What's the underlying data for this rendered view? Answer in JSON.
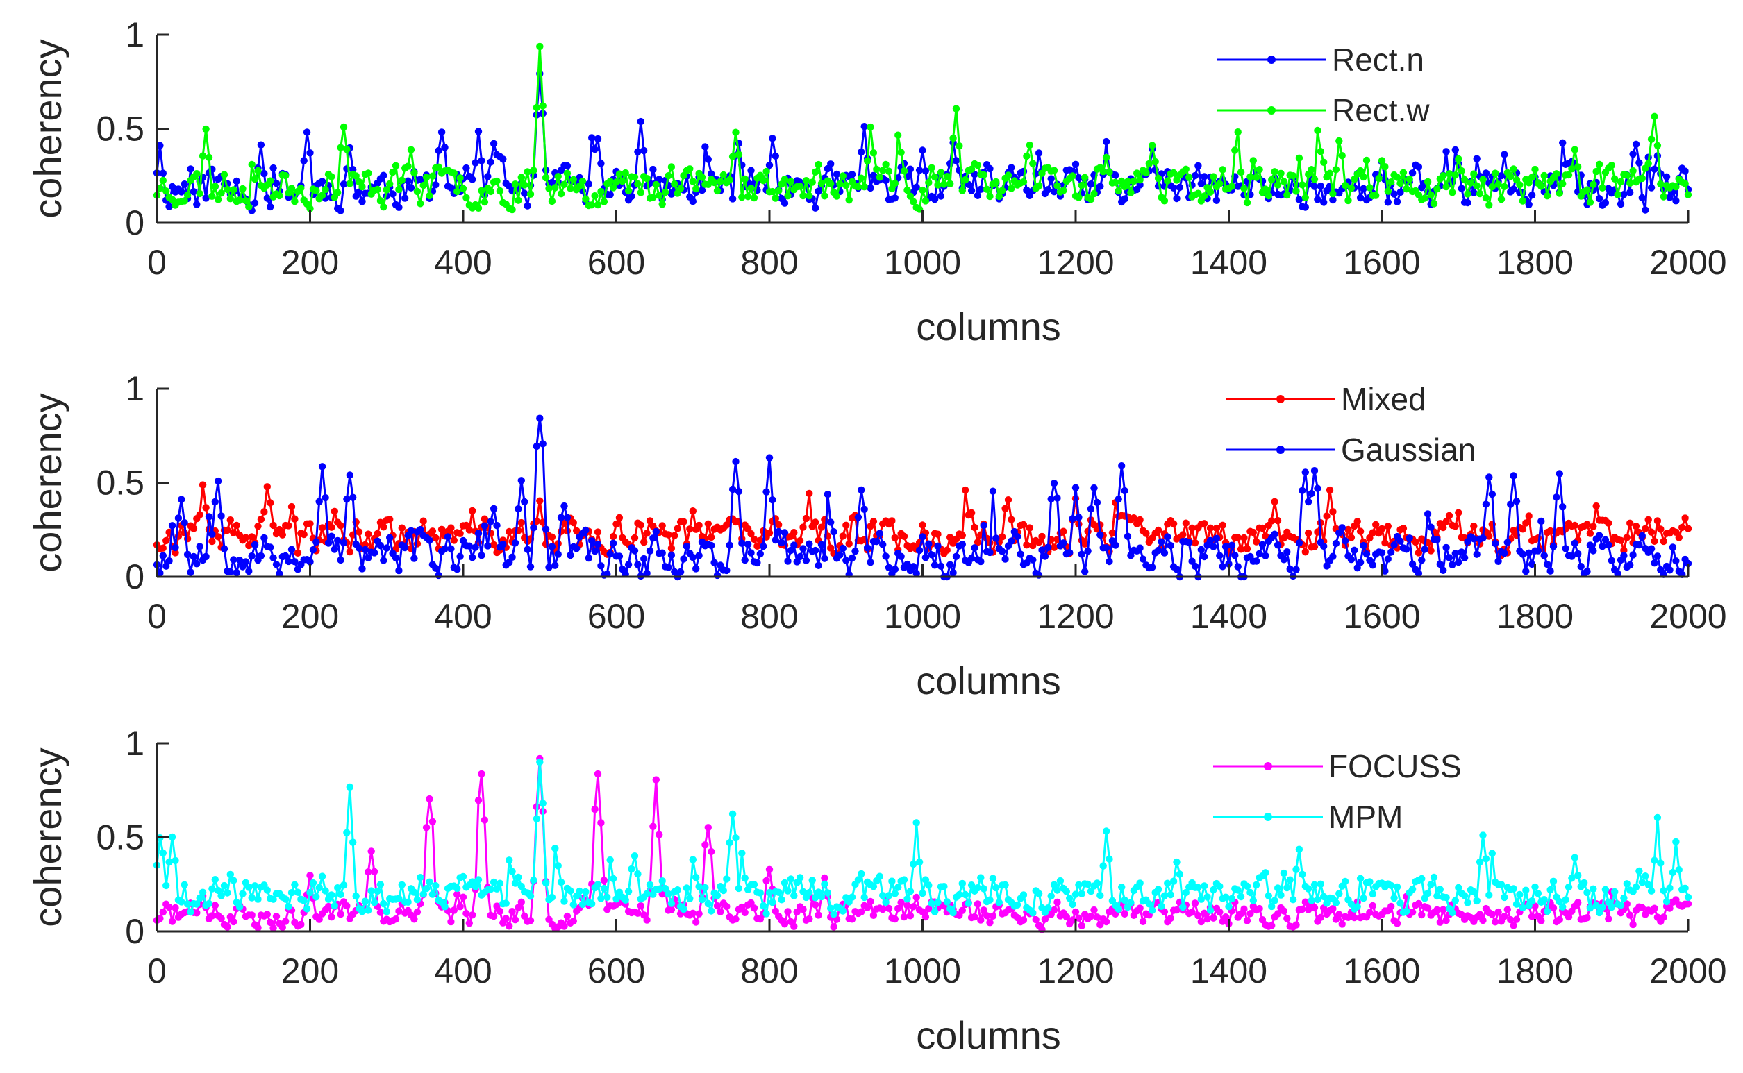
{
  "figure": {
    "background": "#ffffff",
    "axis_color": "#262626"
  },
  "chart_data": [
    {
      "type": "line",
      "xlabel": "columns",
      "ylabel": "coherency",
      "xlim": [
        0,
        2000
      ],
      "ylim": [
        0,
        1
      ],
      "xticks": [
        "0",
        "200",
        "400",
        "600",
        "800",
        "1000",
        "1200",
        "1400",
        "1600",
        "1800",
        "2000"
      ],
      "yticks": [
        "0",
        "0.5",
        "1"
      ],
      "grid": false,
      "legend_position": "top-right",
      "markers": "dot",
      "series": [
        {
          "name": "Rect.n",
          "color": "#0000ff",
          "base": 0.17,
          "spread": 0.16,
          "seed": 11,
          "peaks": [
            [
              4,
              0.42
            ],
            [
              135,
              0.42
            ],
            [
              195,
              0.51
            ],
            [
              250,
              0.46
            ],
            [
              370,
              0.59
            ],
            [
              420,
              0.5
            ],
            [
              438,
              0.52
            ],
            [
              500,
              0.97
            ],
            [
              575,
              0.48
            ],
            [
              630,
              0.58
            ],
            [
              760,
              0.5
            ],
            [
              805,
              0.46
            ],
            [
              925,
              0.52
            ],
            [
              1000,
              0.46
            ],
            [
              1040,
              0.46
            ],
            [
              1150,
              0.42
            ],
            [
              1240,
              0.44
            ],
            [
              1300,
              0.43
            ],
            [
              1600,
              0.36
            ],
            [
              1760,
              0.4
            ],
            [
              1930,
              0.5
            ],
            [
              1960,
              0.42
            ]
          ]
        },
        {
          "name": "Rect.w",
          "color": "#00ff00",
          "base": 0.18,
          "spread": 0.15,
          "seed": 23,
          "peaks": [
            [
              65,
              0.51
            ],
            [
              245,
              0.57
            ],
            [
              330,
              0.43
            ],
            [
              500,
              0.99
            ],
            [
              670,
              0.35
            ],
            [
              755,
              0.58
            ],
            [
              930,
              0.54
            ],
            [
              1045,
              0.65
            ],
            [
              1140,
              0.5
            ],
            [
              1240,
              0.41
            ],
            [
              1300,
              0.45
            ],
            [
              1430,
              0.37
            ],
            [
              1700,
              0.41
            ],
            [
              1850,
              0.41
            ],
            [
              1955,
              0.66
            ]
          ]
        }
      ]
    },
    {
      "type": "line",
      "xlabel": "columns",
      "ylabel": "coherency",
      "xlim": [
        0,
        2000
      ],
      "ylim": [
        0,
        1
      ],
      "xticks": [
        "0",
        "200",
        "400",
        "600",
        "800",
        "1000",
        "1200",
        "1400",
        "1600",
        "1800",
        "2000"
      ],
      "yticks": [
        "0",
        "0.5",
        "1"
      ],
      "grid": false,
      "legend_position": "top-right",
      "markers": "dot",
      "series": [
        {
          "name": "Mixed",
          "color": "#ff0000",
          "base": 0.2,
          "spread": 0.14,
          "seed": 37,
          "peaks": [
            [
              145,
              0.55
            ],
            [
              175,
              0.46
            ],
            [
              230,
              0.4
            ],
            [
              410,
              0.36
            ],
            [
              500,
              0.45
            ],
            [
              540,
              0.37
            ],
            [
              700,
              0.4
            ],
            [
              850,
              0.45
            ],
            [
              1110,
              0.42
            ],
            [
              1200,
              0.42
            ],
            [
              1460,
              0.43
            ],
            [
              1700,
              0.35
            ],
            [
              1880,
              0.4
            ],
            [
              1960,
              0.3
            ]
          ]
        },
        {
          "name": "Gaussian",
          "color": "#0000ff",
          "base": 0.1,
          "spread": 0.17,
          "seed": 53,
          "peaks": [
            [
              30,
              0.48
            ],
            [
              80,
              0.55
            ],
            [
              215,
              0.66
            ],
            [
              250,
              0.66
            ],
            [
              440,
              0.42
            ],
            [
              475,
              0.55
            ],
            [
              500,
              1.0
            ],
            [
              530,
              0.46
            ],
            [
              755,
              0.66
            ],
            [
              800,
              0.65
            ],
            [
              920,
              0.53
            ],
            [
              1170,
              0.6
            ],
            [
              1200,
              0.48
            ],
            [
              1225,
              0.54
            ],
            [
              1260,
              0.63
            ],
            [
              1500,
              0.65
            ],
            [
              1510,
              0.65
            ],
            [
              1740,
              0.65
            ],
            [
              1770,
              0.55
            ],
            [
              1830,
              0.59
            ]
          ]
        }
      ]
    },
    {
      "type": "line",
      "xlabel": "columns",
      "ylabel": "coherency",
      "xlim": [
        0,
        2000
      ],
      "ylim": [
        0,
        1
      ],
      "xticks": [
        "0",
        "200",
        "400",
        "600",
        "800",
        "1000",
        "1200",
        "1400",
        "1600",
        "1800",
        "2000"
      ],
      "yticks": [
        "0",
        "0.5",
        "1"
      ],
      "grid": false,
      "legend_position": "top-right",
      "markers": "dot",
      "series": [
        {
          "name": "FOCUSS",
          "color": "#ff00ff",
          "base": 0.08,
          "spread": 0.1,
          "seed": 71,
          "peaks": [
            [
              200,
              0.3
            ],
            [
              280,
              0.48
            ],
            [
              355,
              0.85
            ],
            [
              425,
              0.96
            ],
            [
              500,
              0.98
            ],
            [
              575,
              0.95
            ],
            [
              650,
              0.83
            ],
            [
              720,
              0.65
            ],
            [
              800,
              0.38
            ],
            [
              870,
              0.3
            ],
            [
              950,
              0.2
            ],
            [
              1100,
              0.15
            ],
            [
              1300,
              0.12
            ],
            [
              1500,
              0.05
            ],
            [
              1700,
              0.08
            ],
            [
              1900,
              0.1
            ]
          ]
        },
        {
          "name": "MPM",
          "color": "#00ffff",
          "base": 0.18,
          "spread": 0.14,
          "seed": 89,
          "peaks": [
            [
              5,
              0.58
            ],
            [
              20,
              0.55
            ],
            [
              250,
              0.78
            ],
            [
              500,
              1.0
            ],
            [
              625,
              0.46
            ],
            [
              750,
              0.78
            ],
            [
              990,
              0.58
            ],
            [
              1240,
              0.58
            ],
            [
              1330,
              0.43
            ],
            [
              1490,
              0.5
            ],
            [
              1730,
              0.57
            ],
            [
              1850,
              0.42
            ],
            [
              1960,
              0.62
            ],
            [
              1985,
              0.49
            ]
          ]
        }
      ]
    }
  ]
}
